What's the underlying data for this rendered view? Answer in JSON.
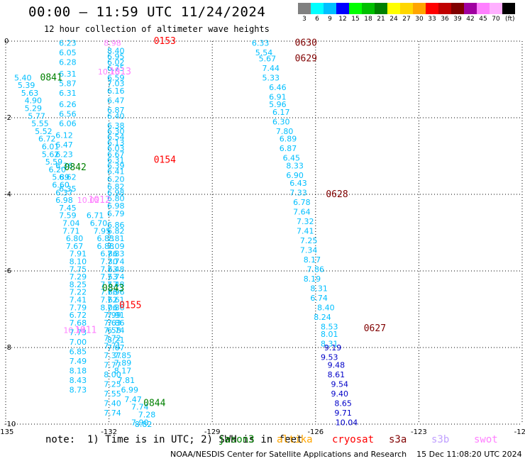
{
  "header": {
    "title": "00:00 — 11:59 UTC 11/24/2024",
    "subtitle": "12 hour collection of altimeter wave heights"
  },
  "legend": {
    "unit": "(ft)",
    "bins": [
      {
        "label": "3",
        "color": "#808080"
      },
      {
        "label": "6",
        "color": "#00ffff"
      },
      {
        "label": "9",
        "color": "#00bfff"
      },
      {
        "label": "12",
        "color": "#0000ff"
      },
      {
        "label": "15",
        "color": "#00ff00"
      },
      {
        "label": "18",
        "color": "#00c000"
      },
      {
        "label": "21",
        "color": "#008000"
      },
      {
        "label": "24",
        "color": "#ffff00"
      },
      {
        "label": "27",
        "color": "#ffd700"
      },
      {
        "label": "30",
        "color": "#ffa500"
      },
      {
        "label": "33",
        "color": "#ff0000"
      },
      {
        "label": "36",
        "color": "#c00000"
      },
      {
        "label": "39",
        "color": "#800000"
      },
      {
        "label": "42",
        "color": "#a000a0"
      },
      {
        "label": "45",
        "color": "#ff80ff"
      },
      {
        "label": "70",
        "color": "#ffb0ff"
      },
      {
        "label": "",
        "color": "#000000"
      }
    ]
  },
  "footer": {
    "note": "note:  1) Time is in UTC; 2) SWH is in feet",
    "credit": "NOAA/NESDIS Center for Satellite Applications and Research    15 Dec 11:08:20 UTC 2024",
    "satellites": [
      {
        "name": "jason3",
        "color": "#008000"
      },
      {
        "name": "altika",
        "color": "#ffa500"
      },
      {
        "name": "cryosat",
        "color": "#ff0000"
      },
      {
        "name": "s3a",
        "color": "#800000"
      },
      {
        "name": "s3b",
        "color": "#c0a0ff"
      },
      {
        "name": "swot",
        "color": "#ff80ff"
      }
    ]
  },
  "chart_data": {
    "type": "scatter",
    "xlim": [
      -135,
      -120
    ],
    "ylim": [
      -10,
      0
    ],
    "x_ticks": [
      "-135",
      "-132",
      "-129",
      "-126",
      "-123",
      "-120"
    ],
    "y_ticks": [
      "0",
      "-2",
      "-4",
      "-6",
      "-8",
      "-10"
    ],
    "grid": true,
    "colors": {
      "cyan": "#00bfff",
      "blue": "#0000c8"
    },
    "pass_labels": [
      {
        "text": "0153",
        "x": -130.7,
        "y": 0.0,
        "color": "#ff0000"
      },
      {
        "text": "0154",
        "x": -130.7,
        "y": -3.1,
        "color": "#ff0000"
      },
      {
        "text": "0155",
        "x": -131.7,
        "y": -6.9,
        "color": "#ff0000"
      },
      {
        "text": "0630",
        "x": -126.6,
        "y": -0.05,
        "color": "#800000"
      },
      {
        "text": "0629",
        "x": -126.6,
        "y": -0.45,
        "color": "#800000"
      },
      {
        "text": "0628",
        "x": -125.7,
        "y": -4.0,
        "color": "#800000"
      },
      {
        "text": "0627",
        "x": -124.6,
        "y": -7.5,
        "color": "#800000"
      },
      {
        "text": "0841",
        "x": -134.0,
        "y": -0.95,
        "color": "#008000"
      },
      {
        "text": "0842",
        "x": -133.3,
        "y": -3.3,
        "color": "#008000"
      },
      {
        "text": "0843",
        "x": -132.2,
        "y": -6.45,
        "color": "#008000"
      },
      {
        "text": "0844",
        "x": -131.0,
        "y": -9.45,
        "color": "#008000"
      },
      {
        "text": "1013",
        "x": -132.0,
        "y": -0.8,
        "color": "#ff80ff"
      },
      {
        "text": "1012",
        "x": -132.6,
        "y": -4.15,
        "color": "#ff80ff"
      },
      {
        "text": "1011",
        "x": -133.0,
        "y": -7.55,
        "color": "#ff80ff"
      }
    ],
    "series": [
      {
        "name": "swot",
        "color": "#ff80ff",
        "points": [
          [
            -131.9,
            -0.05,
            "8.98"
          ],
          [
            -132.0,
            -0.8,
            "10.13"
          ],
          [
            -132.6,
            -4.15,
            "10.02"
          ],
          [
            -133.0,
            -7.55,
            "10.14"
          ]
        ]
      },
      {
        "name": "0153-0155",
        "color": "#00bfff",
        "points": [
          [
            -133.2,
            -0.05,
            "6.23"
          ],
          [
            -133.2,
            -0.3,
            "6.05"
          ],
          [
            -133.2,
            -0.55,
            "6.28"
          ],
          [
            -133.2,
            -0.85,
            "6.31"
          ],
          [
            -133.2,
            -1.1,
            "5.87"
          ],
          [
            -133.2,
            -1.35,
            "6.31"
          ],
          [
            -133.2,
            -1.65,
            "6.26"
          ],
          [
            -133.2,
            -1.9,
            "6.56"
          ],
          [
            -133.2,
            -2.15,
            "6.06"
          ],
          [
            -133.3,
            -2.45,
            "6.12"
          ],
          [
            -133.3,
            -2.7,
            "6.47"
          ],
          [
            -133.3,
            -2.95,
            "6.23"
          ],
          [
            -133.3,
            -3.25,
            "6.36"
          ],
          [
            -133.2,
            -3.55,
            "6.62"
          ],
          [
            -133.2,
            -3.85,
            "6.35"
          ],
          [
            -131.8,
            -0.25,
            "8.40"
          ],
          [
            -131.8,
            -0.4,
            "6.95"
          ],
          [
            -131.8,
            -0.55,
            "6.02"
          ],
          [
            -131.8,
            -0.7,
            "6.75"
          ],
          [
            -131.8,
            -0.95,
            "6.59"
          ],
          [
            -131.8,
            -1.1,
            "7.03"
          ],
          [
            -131.8,
            -1.3,
            "6.16"
          ],
          [
            -131.8,
            -1.55,
            "6.47"
          ],
          [
            -131.8,
            -1.8,
            "6.87"
          ],
          [
            -131.8,
            -1.95,
            "6.40"
          ],
          [
            -131.8,
            -2.2,
            "6.38"
          ],
          [
            -131.8,
            -2.35,
            "6.30"
          ],
          [
            -131.8,
            -2.5,
            "6.54"
          ],
          [
            -131.8,
            -2.65,
            "6.13"
          ],
          [
            -131.8,
            -2.8,
            "6.03"
          ],
          [
            -131.8,
            -2.95,
            "6.67"
          ],
          [
            -131.8,
            -3.1,
            "6.31"
          ],
          [
            -131.8,
            -3.25,
            "6.39"
          ],
          [
            -131.8,
            -3.4,
            "6.41"
          ],
          [
            -131.8,
            -3.6,
            "6.20"
          ],
          [
            -131.8,
            -3.8,
            "6.82"
          ],
          [
            -131.8,
            -3.95,
            "6.98"
          ],
          [
            -131.8,
            -4.1,
            "6.80"
          ],
          [
            -131.8,
            -4.3,
            "6.98"
          ],
          [
            -131.8,
            -4.5,
            "6.79"
          ],
          [
            -131.8,
            -4.8,
            "6.86"
          ],
          [
            -131.8,
            -4.95,
            "6.82"
          ],
          [
            -131.8,
            -5.15,
            "7.81"
          ],
          [
            -131.8,
            -5.35,
            "7.09"
          ],
          [
            -131.8,
            -5.55,
            "7.83"
          ],
          [
            -131.8,
            -5.75,
            "7.74"
          ],
          [
            -131.8,
            -5.95,
            "7.48"
          ],
          [
            -131.8,
            -6.15,
            "7.74"
          ],
          [
            -131.8,
            -6.35,
            "7.48"
          ],
          [
            -131.8,
            -6.55,
            "7.96"
          ],
          [
            -131.8,
            -6.75,
            "7.61"
          ],
          [
            -131.8,
            -6.95,
            "7.86"
          ],
          [
            -131.8,
            -7.15,
            "7.91"
          ],
          [
            -131.8,
            -7.35,
            "7.86"
          ],
          [
            -131.8,
            -7.55,
            "6.74"
          ],
          [
            -131.8,
            -7.8,
            "8.21"
          ],
          [
            -131.8,
            -8.0,
            "7.67"
          ],
          [
            -131.6,
            -8.2,
            "7.85"
          ],
          [
            -131.6,
            -8.4,
            "7.89"
          ],
          [
            -131.6,
            -8.6,
            "8.17"
          ],
          [
            -131.5,
            -8.85,
            "7.81"
          ],
          [
            -131.4,
            -9.1,
            "6.99"
          ],
          [
            -131.3,
            -9.35,
            "7.47"
          ],
          [
            -131.1,
            -9.55,
            "7.74"
          ],
          [
            -130.9,
            -9.75,
            "7.28"
          ],
          [
            -131.1,
            -9.95,
            "7.90"
          ],
          [
            -131.0,
            -10.0,
            "8.82"
          ]
        ]
      },
      {
        "name": "0841-0844",
        "color": "#00bfff",
        "points": [
          [
            -134.5,
            -0.95,
            "5.40"
          ],
          [
            -134.4,
            -1.15,
            "5.39"
          ],
          [
            -134.3,
            -1.35,
            "5.63"
          ],
          [
            -134.2,
            -1.55,
            "4.90"
          ],
          [
            -134.2,
            -1.75,
            "5.29"
          ],
          [
            -134.1,
            -1.95,
            "5.77"
          ],
          [
            -134.0,
            -2.15,
            "5.55"
          ],
          [
            -133.9,
            -2.35,
            "5.52"
          ],
          [
            -133.8,
            -2.55,
            "6.72"
          ],
          [
            -133.7,
            -2.75,
            "6.01"
          ],
          [
            -133.7,
            -2.95,
            "5.62"
          ],
          [
            -133.6,
            -3.15,
            "5.59"
          ],
          [
            -133.5,
            -3.35,
            "6.20"
          ],
          [
            -133.4,
            -3.55,
            "5.89"
          ],
          [
            -133.4,
            -3.75,
            "6.60"
          ],
          [
            -133.3,
            -3.95,
            "6.37"
          ],
          [
            -133.3,
            -4.15,
            "6.98"
          ],
          [
            -133.2,
            -4.35,
            "7.45"
          ],
          [
            -133.2,
            -4.55,
            "7.59"
          ],
          [
            -133.1,
            -4.75,
            "7.04"
          ],
          [
            -133.1,
            -4.95,
            "7.71"
          ],
          [
            -133.0,
            -5.15,
            "6.80"
          ],
          [
            -133.0,
            -5.35,
            "7.67"
          ],
          [
            -132.9,
            -5.55,
            "7.91"
          ],
          [
            -132.9,
            -5.75,
            "8.10"
          ],
          [
            -132.9,
            -5.95,
            "7.75"
          ],
          [
            -132.9,
            -6.15,
            "7.29"
          ],
          [
            -132.9,
            -6.35,
            "8.25"
          ],
          [
            -132.9,
            -6.55,
            "7.22"
          ],
          [
            -132.9,
            -6.75,
            "7.41"
          ],
          [
            -132.9,
            -6.95,
            "7.79"
          ],
          [
            -132.9,
            -7.15,
            "6.72"
          ],
          [
            -132.9,
            -7.35,
            "7.68"
          ],
          [
            -132.9,
            -7.6,
            "7.73"
          ],
          [
            -132.9,
            -7.85,
            "7.00"
          ],
          [
            -132.9,
            -8.1,
            "6.85"
          ],
          [
            -132.9,
            -8.35,
            "7.49"
          ],
          [
            -132.9,
            -8.6,
            "8.18"
          ],
          [
            -132.9,
            -8.85,
            "8.43"
          ],
          [
            -132.9,
            -9.1,
            "8.73"
          ],
          [
            -132.4,
            -4.55,
            "6.71"
          ],
          [
            -132.3,
            -4.75,
            "6.70"
          ],
          [
            -132.2,
            -4.95,
            "7.95"
          ],
          [
            -132.1,
            -5.15,
            "6.83"
          ],
          [
            -132.1,
            -5.35,
            "6.88"
          ],
          [
            -132.0,
            -5.55,
            "6.86"
          ],
          [
            -132.0,
            -5.75,
            "7.30"
          ],
          [
            -132.0,
            -5.95,
            "7.63"
          ],
          [
            -132.0,
            -6.15,
            "7.53"
          ],
          [
            -132.0,
            -6.35,
            "7.57"
          ],
          [
            -132.0,
            -6.55,
            "7.66"
          ],
          [
            -132.0,
            -6.75,
            "7.62"
          ],
          [
            -132.0,
            -6.95,
            "8.06"
          ],
          [
            -131.9,
            -7.15,
            "7.99"
          ],
          [
            -131.9,
            -7.35,
            "7.63"
          ],
          [
            -131.9,
            -7.55,
            "7.58"
          ],
          [
            -131.9,
            -7.75,
            "7.72"
          ],
          [
            -131.9,
            -7.95,
            "7.71"
          ],
          [
            -131.9,
            -8.2,
            "7.37"
          ],
          [
            -131.9,
            -8.45,
            "7.77"
          ],
          [
            -131.9,
            -8.7,
            "8.00"
          ],
          [
            -131.9,
            -8.95,
            "7.25"
          ],
          [
            -131.9,
            -9.2,
            "7.55"
          ],
          [
            -131.9,
            -9.45,
            "7.40"
          ],
          [
            -131.9,
            -9.7,
            "7.74"
          ]
        ]
      },
      {
        "name": "0627-0630",
        "color": "#00bfff",
        "points": [
          [
            -127.6,
            -0.05,
            "6.33"
          ],
          [
            -127.5,
            -0.3,
            "5.54"
          ],
          [
            -127.4,
            -0.45,
            "5.67"
          ],
          [
            -127.3,
            -0.7,
            "7.44"
          ],
          [
            -127.3,
            -0.95,
            "5.33"
          ],
          [
            -127.1,
            -1.2,
            "6.46"
          ],
          [
            -127.1,
            -1.45,
            "6.91"
          ],
          [
            -127.1,
            -1.65,
            "5.96"
          ],
          [
            -127.0,
            -1.85,
            "6.17"
          ],
          [
            -127.0,
            -2.1,
            "6.30"
          ],
          [
            -126.9,
            -2.35,
            "7.80"
          ],
          [
            -126.8,
            -2.55,
            "6.89"
          ],
          [
            -126.8,
            -2.8,
            "6.87"
          ],
          [
            -126.7,
            -3.05,
            "6.45"
          ],
          [
            -126.6,
            -3.25,
            "8.33"
          ],
          [
            -126.6,
            -3.5,
            "6.90"
          ],
          [
            -126.5,
            -3.7,
            "6.43"
          ],
          [
            -126.5,
            -3.95,
            "7.33"
          ],
          [
            -126.4,
            -4.2,
            "6.78"
          ],
          [
            -126.4,
            -4.45,
            "7.64"
          ],
          [
            -126.3,
            -4.7,
            "7.32"
          ],
          [
            -126.3,
            -4.95,
            "7.41"
          ],
          [
            -126.2,
            -5.2,
            "7.25"
          ],
          [
            -126.2,
            -5.45,
            "7.34"
          ],
          [
            -126.1,
            -5.7,
            "8.17"
          ],
          [
            -126.0,
            -5.95,
            "7.86"
          ],
          [
            -126.1,
            -6.2,
            "8.19"
          ],
          [
            -125.9,
            -6.45,
            "8.31"
          ],
          [
            -125.9,
            -6.7,
            "6.74"
          ],
          [
            -125.7,
            -6.95,
            "8.40"
          ],
          [
            -125.8,
            -7.2,
            "8.24"
          ],
          [
            -125.6,
            -7.45,
            "8.53"
          ],
          [
            -125.6,
            -7.65,
            "8.01"
          ],
          [
            -125.6,
            -7.9,
            "8.31"
          ]
        ]
      },
      {
        "name": "0627-blue",
        "color": "#0000c8",
        "points": [
          [
            -125.5,
            -8.0,
            "9.19"
          ],
          [
            -125.6,
            -8.25,
            "9.53"
          ],
          [
            -125.4,
            -8.45,
            "9.48"
          ],
          [
            -125.4,
            -8.7,
            "8.61"
          ],
          [
            -125.3,
            -8.95,
            "9.54"
          ],
          [
            -125.3,
            -9.2,
            "9.40"
          ],
          [
            -125.2,
            -9.45,
            "8.65"
          ],
          [
            -125.2,
            -9.7,
            "9.71"
          ],
          [
            -125.1,
            -9.95,
            "10.04"
          ]
        ]
      }
    ]
  }
}
